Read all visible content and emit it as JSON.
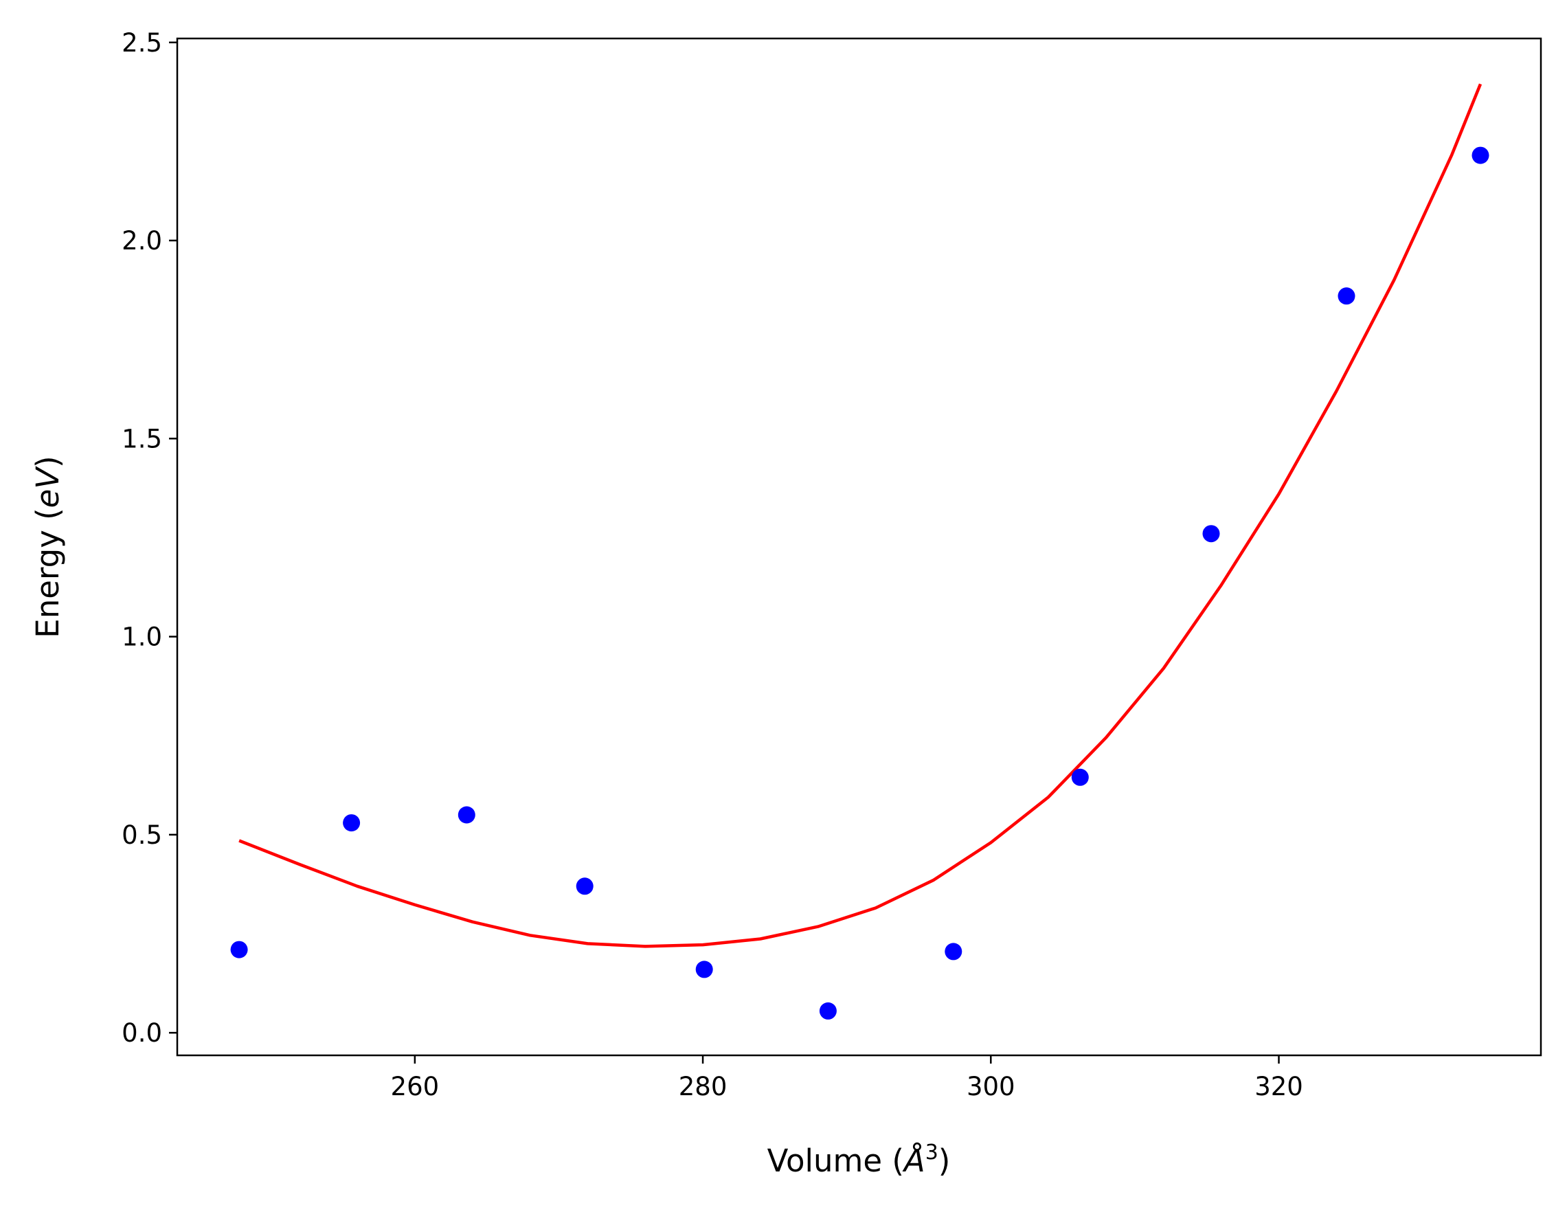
{
  "chart_data": {
    "type": "scatter",
    "xlabel": "Volume (Å³)",
    "xlabel_parts": {
      "prefix": "Volume (",
      "symbol": "Å",
      "exponent": "3",
      "suffix": ")"
    },
    "ylabel": "Energy (eV)",
    "ylabel_parts": {
      "prefix": "Energy (",
      "symbol": "eV",
      "suffix": ")"
    },
    "xlim": [
      243.5,
      338.2
    ],
    "ylim": [
      -0.057,
      2.51
    ],
    "x_ticks": [
      260,
      280,
      300,
      320
    ],
    "x_tick_labels": [
      "260",
      "280",
      "300",
      "320"
    ],
    "y_ticks": [
      0.0,
      0.5,
      1.0,
      1.5,
      2.0,
      2.5
    ],
    "y_tick_labels": [
      "0.0",
      "0.5",
      "1.0",
      "1.5",
      "2.0",
      "2.5"
    ],
    "grid": false,
    "legend": "none",
    "series": [
      {
        "kind": "points",
        "color": "#0000ff",
        "x": [
          247.8,
          255.6,
          263.6,
          271.8,
          280.1,
          288.7,
          297.4,
          306.2,
          315.3,
          324.7,
          334.0
        ],
        "y": [
          0.21,
          0.53,
          0.55,
          0.37,
          0.16,
          0.055,
          0.205,
          0.645,
          1.26,
          1.86,
          2.215
        ]
      },
      {
        "kind": "line",
        "color": "#ff0000",
        "x": [
          247.8,
          252.0,
          256.0,
          260.0,
          264.0,
          268.0,
          272.0,
          276.0,
          280.0,
          284.0,
          288.0,
          292.0,
          296.0,
          300.0,
          304.0,
          308.0,
          312.0,
          316.0,
          320.0,
          324.0,
          328.0,
          332.0,
          334.0
        ],
        "y": [
          0.485,
          0.425,
          0.37,
          0.323,
          0.28,
          0.246,
          0.225,
          0.218,
          0.222,
          0.237,
          0.268,
          0.315,
          0.385,
          0.48,
          0.595,
          0.745,
          0.92,
          1.13,
          1.36,
          1.62,
          1.9,
          2.215,
          2.395
        ]
      }
    ]
  }
}
